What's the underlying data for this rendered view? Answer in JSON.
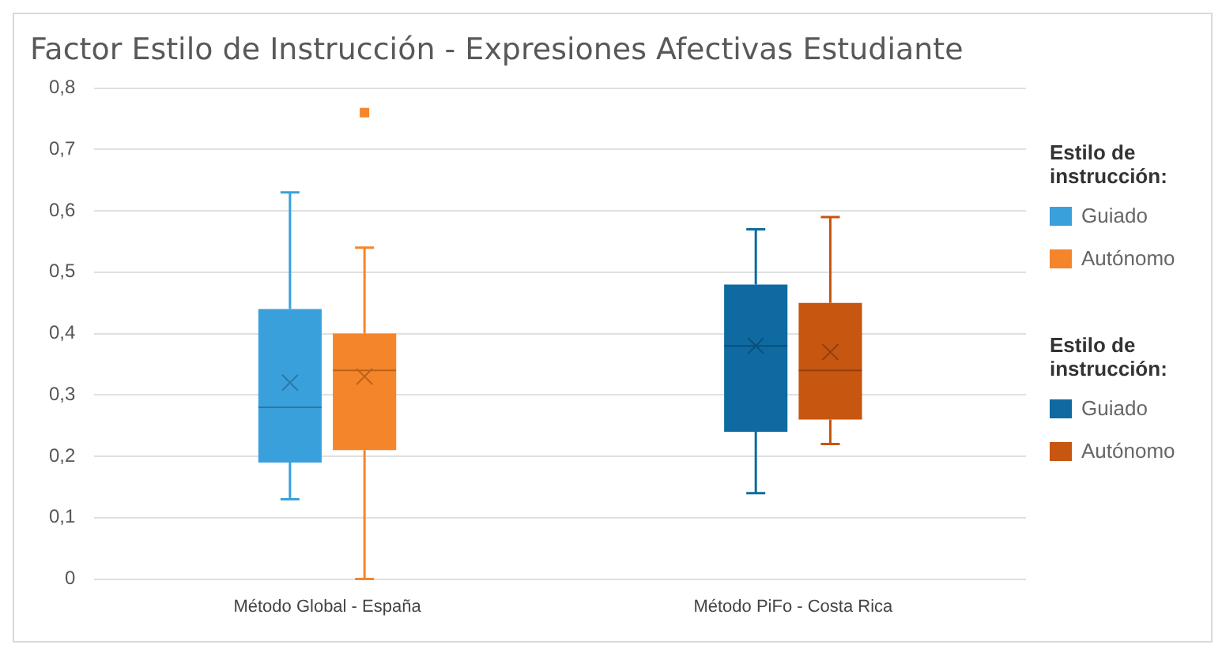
{
  "chart_data": {
    "type": "box",
    "title": "Factor Estilo de Instrucción - Expresiones Afectivas Estudiante",
    "legend_title": "Estilo de instrucción:",
    "categories": [
      "Método Global - España",
      "Método PiFo - Costa Rica"
    ],
    "series": [
      {
        "name": "Guiado",
        "color": "#3aa0dc",
        "boxes": [
          {
            "low": 0.13,
            "q1": 0.19,
            "median": 0.28,
            "q3": 0.44,
            "high": 0.63,
            "mean": 0.32
          },
          null
        ]
      },
      {
        "name": "Autónomo",
        "color": "#f5852a",
        "boxes": [
          {
            "low": 0,
            "q1": 0.21,
            "median": 0.34,
            "q3": 0.4,
            "high": 0.54,
            "mean": 0.33,
            "outliers": [
              0.76
            ]
          },
          null
        ]
      },
      {
        "name": "Guiado",
        "color": "#0e6aa0",
        "boxes": [
          null,
          {
            "low": 0.14,
            "q1": 0.24,
            "median": 0.38,
            "q3": 0.48,
            "high": 0.57,
            "mean": 0.38
          }
        ]
      },
      {
        "name": "Autónomo",
        "color": "#c65610",
        "boxes": [
          null,
          {
            "low": 0.22,
            "q1": 0.26,
            "median": 0.34,
            "q3": 0.45,
            "high": 0.59,
            "mean": 0.37
          }
        ]
      }
    ],
    "ylim": [
      0,
      0.8
    ],
    "yticks": [
      {
        "value": 0,
        "label": "0"
      },
      {
        "value": 0.1,
        "label": "0,1"
      },
      {
        "value": 0.2,
        "label": "0,2"
      },
      {
        "value": 0.3,
        "label": "0,3"
      },
      {
        "value": 0.4,
        "label": "0,4"
      },
      {
        "value": 0.5,
        "label": "0,5"
      },
      {
        "value": 0.6,
        "label": "0,6"
      },
      {
        "value": 0.7,
        "label": "0,7"
      },
      {
        "value": 0.8,
        "label": "0,8"
      }
    ],
    "grid": "y",
    "legend": "right"
  }
}
